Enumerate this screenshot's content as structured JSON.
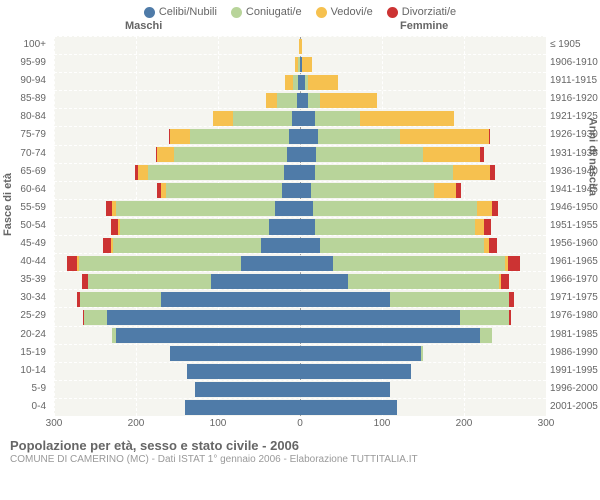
{
  "legend": {
    "items": [
      {
        "label": "Celibi/Nubili",
        "color": "#4f7ba8"
      },
      {
        "label": "Coniugati/e",
        "color": "#b8d49a"
      },
      {
        "label": "Vedovi/e",
        "color": "#f6c14f"
      },
      {
        "label": "Divorziati/e",
        "color": "#cc3333"
      }
    ]
  },
  "headers": {
    "male": "Maschi",
    "female": "Femmine"
  },
  "axis": {
    "left_title": "Fasce di età",
    "right_title": "Anni di nascita",
    "xmax": 300,
    "xticks": [
      300,
      200,
      100,
      0,
      100,
      200,
      300
    ]
  },
  "colors": {
    "single": "#4f7ba8",
    "married": "#b8d49a",
    "widowed": "#f6c14f",
    "divorced": "#cc3333",
    "plot_bg": "#f5f5f0",
    "grid": "#ffffff"
  },
  "footer": {
    "title": "Popolazione per età, sesso e stato civile - 2006",
    "subtitle": "COMUNE DI CAMERINO (MC) - Dati ISTAT 1° gennaio 2006 - Elaborazione TUTTITALIA.IT"
  },
  "rows": [
    {
      "age": "100+",
      "birth": "≤ 1905",
      "m": {
        "s": 0,
        "c": 0,
        "w": 1,
        "d": 0
      },
      "f": {
        "s": 0,
        "c": 0,
        "w": 2,
        "d": 0
      }
    },
    {
      "age": "95-99",
      "birth": "1906-1910",
      "m": {
        "s": 0,
        "c": 2,
        "w": 4,
        "d": 0
      },
      "f": {
        "s": 2,
        "c": 1,
        "w": 12,
        "d": 0
      }
    },
    {
      "age": "90-94",
      "birth": "1911-1915",
      "m": {
        "s": 2,
        "c": 6,
        "w": 10,
        "d": 0
      },
      "f": {
        "s": 6,
        "c": 4,
        "w": 36,
        "d": 0
      }
    },
    {
      "age": "85-89",
      "birth": "1916-1920",
      "m": {
        "s": 4,
        "c": 24,
        "w": 14,
        "d": 0
      },
      "f": {
        "s": 10,
        "c": 14,
        "w": 70,
        "d": 0
      }
    },
    {
      "age": "80-84",
      "birth": "1921-1925",
      "m": {
        "s": 10,
        "c": 72,
        "w": 24,
        "d": 0
      },
      "f": {
        "s": 18,
        "c": 55,
        "w": 115,
        "d": 0
      }
    },
    {
      "age": "75-79",
      "birth": "1926-1930",
      "m": {
        "s": 14,
        "c": 120,
        "w": 24,
        "d": 2
      },
      "f": {
        "s": 22,
        "c": 100,
        "w": 108,
        "d": 2
      }
    },
    {
      "age": "70-74",
      "birth": "1931-1935",
      "m": {
        "s": 16,
        "c": 138,
        "w": 20,
        "d": 2
      },
      "f": {
        "s": 20,
        "c": 130,
        "w": 70,
        "d": 4
      }
    },
    {
      "age": "65-69",
      "birth": "1936-1940",
      "m": {
        "s": 20,
        "c": 165,
        "w": 12,
        "d": 4
      },
      "f": {
        "s": 18,
        "c": 168,
        "w": 46,
        "d": 6
      }
    },
    {
      "age": "60-64",
      "birth": "1941-1945",
      "m": {
        "s": 22,
        "c": 142,
        "w": 6,
        "d": 4
      },
      "f": {
        "s": 14,
        "c": 150,
        "w": 26,
        "d": 6
      }
    },
    {
      "age": "55-59",
      "birth": "1946-1950",
      "m": {
        "s": 30,
        "c": 195,
        "w": 4,
        "d": 8
      },
      "f": {
        "s": 16,
        "c": 200,
        "w": 18,
        "d": 8
      }
    },
    {
      "age": "50-54",
      "birth": "1951-1955",
      "m": {
        "s": 38,
        "c": 182,
        "w": 2,
        "d": 8
      },
      "f": {
        "s": 18,
        "c": 195,
        "w": 12,
        "d": 8
      }
    },
    {
      "age": "45-49",
      "birth": "1956-1960",
      "m": {
        "s": 48,
        "c": 180,
        "w": 2,
        "d": 10
      },
      "f": {
        "s": 24,
        "c": 200,
        "w": 6,
        "d": 10
      }
    },
    {
      "age": "40-44",
      "birth": "1961-1965",
      "m": {
        "s": 72,
        "c": 198,
        "w": 2,
        "d": 12
      },
      "f": {
        "s": 40,
        "c": 210,
        "w": 4,
        "d": 14
      }
    },
    {
      "age": "35-39",
      "birth": "1966-1970",
      "m": {
        "s": 108,
        "c": 150,
        "w": 0,
        "d": 8
      },
      "f": {
        "s": 58,
        "c": 185,
        "w": 2,
        "d": 10
      }
    },
    {
      "age": "30-34",
      "birth": "1971-1975",
      "m": {
        "s": 170,
        "c": 98,
        "w": 0,
        "d": 4
      },
      "f": {
        "s": 110,
        "c": 145,
        "w": 0,
        "d": 6
      }
    },
    {
      "age": "25-29",
      "birth": "1976-1980",
      "m": {
        "s": 235,
        "c": 28,
        "w": 0,
        "d": 2
      },
      "f": {
        "s": 195,
        "c": 60,
        "w": 0,
        "d": 2
      }
    },
    {
      "age": "20-24",
      "birth": "1981-1985",
      "m": {
        "s": 225,
        "c": 4,
        "w": 0,
        "d": 0
      },
      "f": {
        "s": 220,
        "c": 14,
        "w": 0,
        "d": 0
      }
    },
    {
      "age": "15-19",
      "birth": "1986-1990",
      "m": {
        "s": 158,
        "c": 0,
        "w": 0,
        "d": 0
      },
      "f": {
        "s": 148,
        "c": 2,
        "w": 0,
        "d": 0
      }
    },
    {
      "age": "10-14",
      "birth": "1991-1995",
      "m": {
        "s": 138,
        "c": 0,
        "w": 0,
        "d": 0
      },
      "f": {
        "s": 135,
        "c": 0,
        "w": 0,
        "d": 0
      }
    },
    {
      "age": "5-9",
      "birth": "1996-2000",
      "m": {
        "s": 128,
        "c": 0,
        "w": 0,
        "d": 0
      },
      "f": {
        "s": 110,
        "c": 0,
        "w": 0,
        "d": 0
      }
    },
    {
      "age": "0-4",
      "birth": "2001-2005",
      "m": {
        "s": 140,
        "c": 0,
        "w": 0,
        "d": 0
      },
      "f": {
        "s": 118,
        "c": 0,
        "w": 0,
        "d": 0
      }
    }
  ]
}
